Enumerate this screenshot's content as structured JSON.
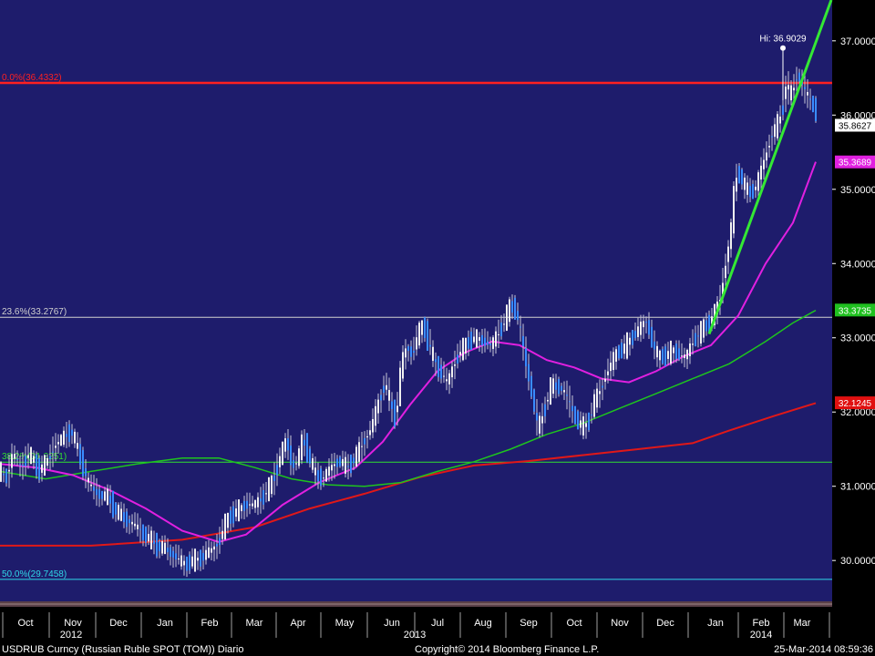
{
  "chart_data": {
    "type": "candlestick-bar",
    "ticker": "USDRUB Curncy (Russian Ruble SPOT (TOM)) Diario",
    "copyright": "Copyright© 2014 Bloomberg Finance L.P.",
    "timestamp": "25-Mar-2014 08:59:36",
    "ylim": [
      29.45,
      37.55
    ],
    "y_ticks": [
      "30.0000",
      "31.0000",
      "32.0000",
      "33.0000",
      "34.0000",
      "35.0000",
      "36.0000",
      "37.0000"
    ],
    "x_months": [
      "Oct",
      "Nov",
      "Dec",
      "Jan",
      "Feb",
      "Mar",
      "Apr",
      "May",
      "Jun",
      "Jul",
      "Aug",
      "Sep",
      "Oct",
      "Nov",
      "Dec",
      "Jan",
      "Feb",
      "Mar"
    ],
    "x_years": [
      "2012",
      "2013",
      "2014"
    ],
    "hi_label": "Hi: 36.9029",
    "hi_value": 36.9029,
    "levels": [
      {
        "label": "0.0%(36.4332)",
        "value": 36.4332,
        "color": "#ff2020"
      },
      {
        "label": "23.6%(33.2767)",
        "value": 33.2767,
        "color": "#d0d0d0"
      },
      {
        "label": "38.2%(31.3251)",
        "value": 31.3251,
        "color": "#30e030"
      },
      {
        "label": "50.0%(29.7458)",
        "value": 29.7458,
        "color": "#30d8e8"
      }
    ],
    "right_badges": [
      {
        "label": "35.8627",
        "value": 35.8627,
        "bg": "#ffffff",
        "fg": "#000000"
      },
      {
        "label": "35.3689",
        "value": 35.3689,
        "bg": "#e020e0",
        "fg": "#ffffff"
      },
      {
        "label": "33.3735",
        "value": 33.3735,
        "bg": "#20c020",
        "fg": "#ffffff"
      },
      {
        "label": "32.1245",
        "value": 32.1245,
        "bg": "#e01010",
        "fg": "#ffffff"
      }
    ],
    "price_anchors": [
      [
        0,
        31.2
      ],
      [
        6,
        31.1
      ],
      [
        14,
        31.45
      ],
      [
        22,
        31.25
      ],
      [
        32,
        31.45
      ],
      [
        42,
        31.2
      ],
      [
        52,
        31.35
      ],
      [
        60,
        31.55
      ],
      [
        68,
        31.65
      ],
      [
        78,
        31.75
      ],
      [
        86,
        31.45
      ],
      [
        96,
        31.05
      ],
      [
        106,
        30.9
      ],
      [
        118,
        30.85
      ],
      [
        128,
        30.65
      ],
      [
        138,
        30.55
      ],
      [
        150,
        30.45
      ],
      [
        162,
        30.3
      ],
      [
        172,
        30.2
      ],
      [
        182,
        30.15
      ],
      [
        192,
        30.05
      ],
      [
        202,
        29.95
      ],
      [
        212,
        30.0
      ],
      [
        222,
        30.05
      ],
      [
        232,
        30.15
      ],
      [
        240,
        30.25
      ],
      [
        248,
        30.55
      ],
      [
        258,
        30.65
      ],
      [
        268,
        30.75
      ],
      [
        278,
        30.75
      ],
      [
        288,
        30.85
      ],
      [
        298,
        31.05
      ],
      [
        306,
        31.35
      ],
      [
        314,
        31.65
      ],
      [
        320,
        31.25
      ],
      [
        326,
        31.35
      ],
      [
        332,
        31.65
      ],
      [
        340,
        31.35
      ],
      [
        346,
        31.15
      ],
      [
        354,
        31.1
      ],
      [
        362,
        31.25
      ],
      [
        372,
        31.35
      ],
      [
        380,
        31.25
      ],
      [
        390,
        31.4
      ],
      [
        398,
        31.6
      ],
      [
        406,
        31.75
      ],
      [
        414,
        32.1
      ],
      [
        422,
        32.4
      ],
      [
        428,
        32.1
      ],
      [
        434,
        31.9
      ],
      [
        440,
        32.65
      ],
      [
        446,
        32.9
      ],
      [
        452,
        32.75
      ],
      [
        458,
        33.05
      ],
      [
        464,
        33.2
      ],
      [
        470,
        32.9
      ],
      [
        476,
        32.7
      ],
      [
        482,
        32.55
      ],
      [
        490,
        32.4
      ],
      [
        498,
        32.65
      ],
      [
        506,
        32.85
      ],
      [
        514,
        32.95
      ],
      [
        522,
        33.0
      ],
      [
        530,
        32.95
      ],
      [
        538,
        32.9
      ],
      [
        546,
        33.05
      ],
      [
        554,
        33.25
      ],
      [
        560,
        33.45
      ],
      [
        566,
        33.35
      ],
      [
        572,
        33.0
      ],
      [
        578,
        32.55
      ],
      [
        584,
        32.2
      ],
      [
        590,
        31.75
      ],
      [
        596,
        32.0
      ],
      [
        604,
        32.35
      ],
      [
        612,
        32.35
      ],
      [
        620,
        32.25
      ],
      [
        628,
        32.0
      ],
      [
        634,
        31.85
      ],
      [
        640,
        31.8
      ],
      [
        646,
        31.9
      ],
      [
        652,
        32.15
      ],
      [
        660,
        32.35
      ],
      [
        668,
        32.6
      ],
      [
        676,
        32.8
      ],
      [
        684,
        32.85
      ],
      [
        692,
        33.0
      ],
      [
        700,
        33.1
      ],
      [
        708,
        33.25
      ],
      [
        716,
        32.9
      ],
      [
        722,
        32.75
      ],
      [
        730,
        32.75
      ],
      [
        738,
        32.85
      ],
      [
        746,
        32.75
      ],
      [
        752,
        32.75
      ],
      [
        760,
        32.95
      ],
      [
        766,
        33.05
      ],
      [
        772,
        33.15
      ],
      [
        778,
        33.2
      ],
      [
        784,
        33.35
      ],
      [
        790,
        33.55
      ],
      [
        796,
        34.0
      ],
      [
        802,
        34.5
      ],
      [
        806,
        35.1
      ],
      [
        810,
        35.25
      ],
      [
        816,
        35.05
      ],
      [
        822,
        34.95
      ],
      [
        828,
        35.0
      ],
      [
        834,
        35.25
      ],
      [
        840,
        35.45
      ],
      [
        846,
        35.75
      ],
      [
        852,
        35.85
      ],
      [
        858,
        36.05
      ],
      [
        862,
        36.45
      ],
      [
        866,
        36.25
      ],
      [
        870,
        36.35
      ],
      [
        874,
        36.55
      ],
      [
        878,
        36.45
      ],
      [
        882,
        36.35
      ],
      [
        886,
        36.25
      ],
      [
        890,
        36.15
      ],
      [
        894,
        36.1
      ],
      [
        897,
        35.86
      ]
    ],
    "ma_magenta": [
      [
        0,
        31.3
      ],
      [
        40,
        31.25
      ],
      [
        80,
        31.15
      ],
      [
        120,
        30.95
      ],
      [
        160,
        30.7
      ],
      [
        200,
        30.4
      ],
      [
        240,
        30.25
      ],
      [
        270,
        30.35
      ],
      [
        310,
        30.75
      ],
      [
        350,
        31.05
      ],
      [
        390,
        31.25
      ],
      [
        420,
        31.6
      ],
      [
        450,
        32.1
      ],
      [
        480,
        32.55
      ],
      [
        510,
        32.8
      ],
      [
        540,
        32.95
      ],
      [
        570,
        32.9
      ],
      [
        600,
        32.7
      ],
      [
        630,
        32.6
      ],
      [
        660,
        32.45
      ],
      [
        690,
        32.4
      ],
      [
        720,
        32.55
      ],
      [
        750,
        32.75
      ],
      [
        780,
        32.9
      ],
      [
        810,
        33.3
      ],
      [
        840,
        34.0
      ],
      [
        870,
        34.55
      ],
      [
        895,
        35.37
      ]
    ],
    "ma_green": [
      [
        0,
        31.2
      ],
      [
        50,
        31.1
      ],
      [
        100,
        31.2
      ],
      [
        150,
        31.3
      ],
      [
        200,
        31.38
      ],
      [
        240,
        31.38
      ],
      [
        280,
        31.25
      ],
      [
        320,
        31.1
      ],
      [
        360,
        31.02
      ],
      [
        400,
        31.0
      ],
      [
        440,
        31.05
      ],
      [
        480,
        31.2
      ],
      [
        520,
        31.33
      ],
      [
        560,
        31.5
      ],
      [
        600,
        31.7
      ],
      [
        640,
        31.85
      ],
      [
        680,
        32.05
      ],
      [
        720,
        32.25
      ],
      [
        760,
        32.45
      ],
      [
        800,
        32.65
      ],
      [
        840,
        32.95
      ],
      [
        870,
        33.2
      ],
      [
        895,
        33.37
      ]
    ],
    "ma_red": [
      [
        0,
        30.2
      ],
      [
        100,
        30.2
      ],
      [
        200,
        30.28
      ],
      [
        280,
        30.45
      ],
      [
        340,
        30.7
      ],
      [
        400,
        30.9
      ],
      [
        460,
        31.12
      ],
      [
        520,
        31.28
      ],
      [
        580,
        31.34
      ],
      [
        640,
        31.42
      ],
      [
        700,
        31.5
      ],
      [
        760,
        31.58
      ],
      [
        800,
        31.75
      ],
      [
        850,
        31.95
      ],
      [
        895,
        32.12
      ]
    ],
    "trendline": [
      [
        778,
        33.05
      ],
      [
        912,
        37.55
      ]
    ]
  }
}
